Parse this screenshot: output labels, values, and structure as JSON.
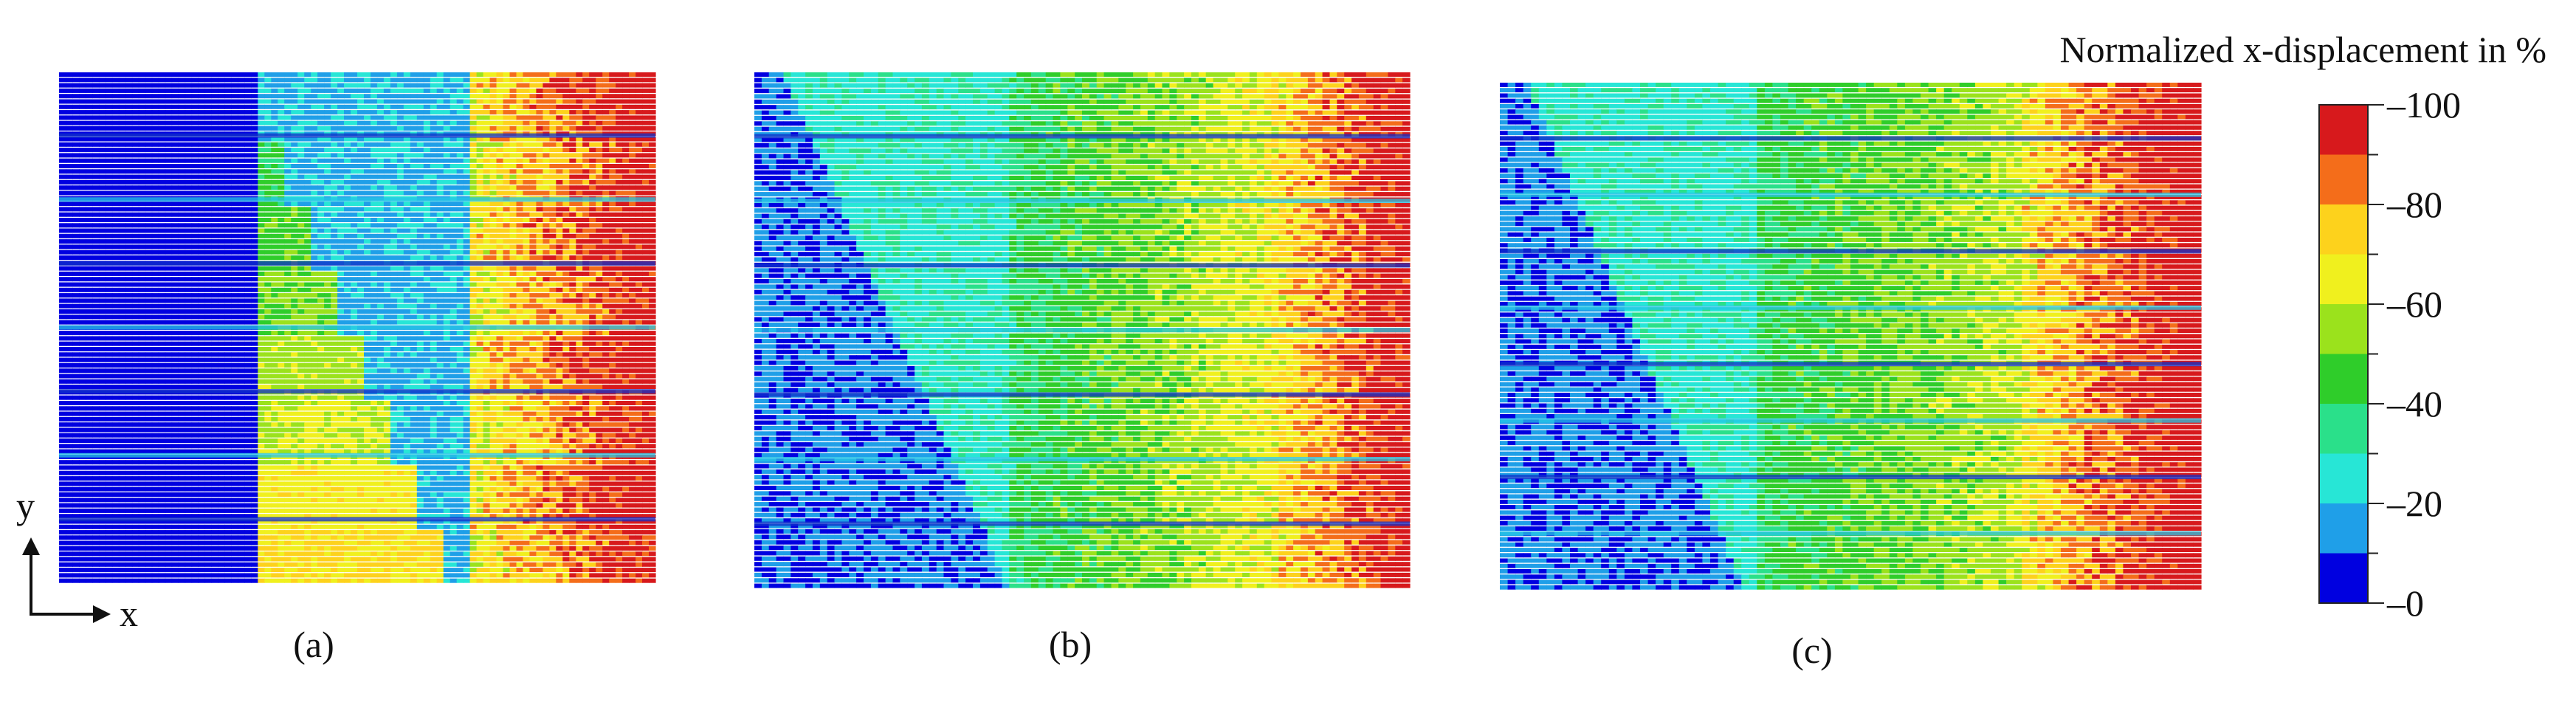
{
  "figure": {
    "panels": [
      {
        "id": "a",
        "label": "(a)"
      },
      {
        "id": "b",
        "label": "(b)"
      },
      {
        "id": "c",
        "label": "(c)"
      }
    ],
    "axes": {
      "x": "x",
      "y": "y"
    },
    "colorbar": {
      "title": "Normalized x-displacement in %",
      "ticks": [
        "100",
        "80",
        "60",
        "40",
        "20",
        "0"
      ],
      "colors": [
        "#d7191c",
        "#f46d1a",
        "#fdd21c",
        "#f0f01e",
        "#9be21c",
        "#2fcd2a",
        "#2ae08a",
        "#27e6d6",
        "#1f9fe8",
        "#0000e0"
      ]
    }
  }
}
